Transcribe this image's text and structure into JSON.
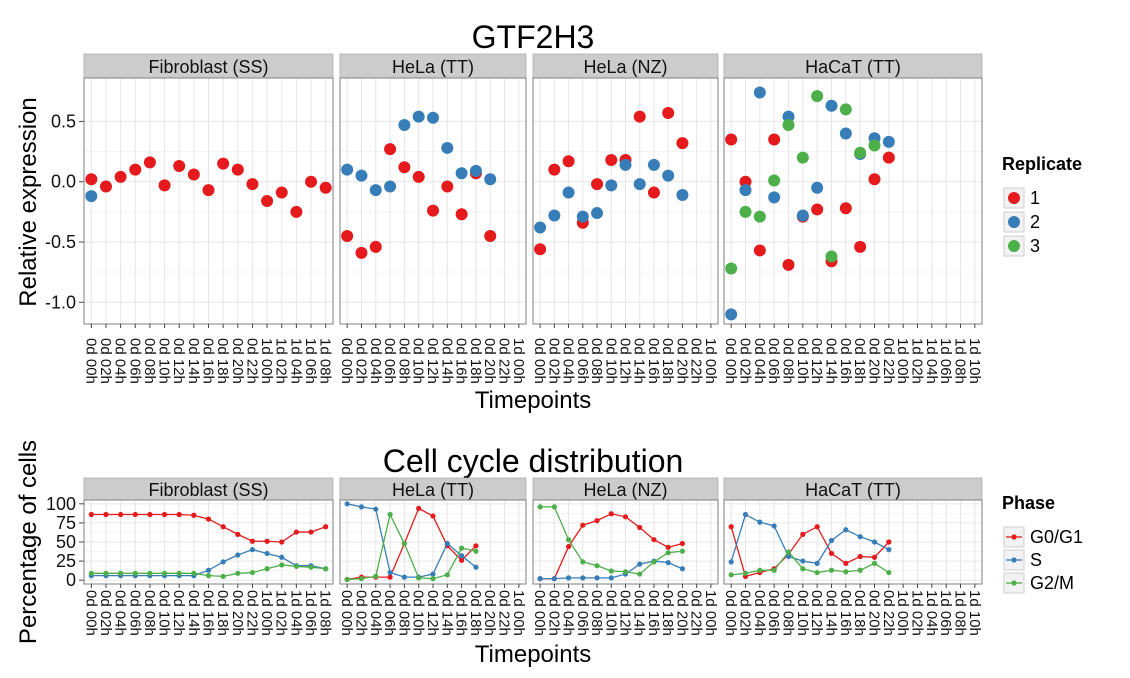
{
  "chart_data": [
    {
      "type": "scatter",
      "title": "GTF2H3",
      "xlabel": "Timepoints",
      "ylabel": "Relative expression",
      "ylim": [
        -1.18,
        0.86
      ],
      "yticks": [
        0.5,
        0.0,
        -0.5,
        -1.0
      ],
      "ytick_labels": [
        "0.5",
        "0.0",
        "-0.5",
        "-1.0"
      ],
      "grid": true,
      "legend": {
        "title": "Replicate",
        "position": "right"
      },
      "series_colors": {
        "1": "#e41a1c",
        "2": "#377eb8",
        "3": "#4daf4a"
      },
      "legend_entries": [
        {
          "key": "1",
          "label": "1"
        },
        {
          "key": "2",
          "label": "2"
        },
        {
          "key": "3",
          "label": "3"
        }
      ],
      "panels": [
        {
          "name": "Fibroblast (SS)",
          "categories": [
            "0d 00h",
            "0d 02h",
            "0d 04h",
            "0d 06h",
            "0d 08h",
            "0d 10h",
            "0d 12h",
            "0d 14h",
            "0d 16h",
            "0d 18h",
            "0d 20h",
            "0d 22h",
            "1d 00h",
            "1d 02h",
            "1d 04h",
            "1d 06h",
            "1d 08h"
          ],
          "series": [
            {
              "name": "1",
              "values": [
                0.02,
                -0.04,
                0.04,
                0.1,
                0.16,
                -0.03,
                0.13,
                0.06,
                -0.07,
                0.15,
                0.1,
                -0.02,
                -0.16,
                -0.09,
                -0.25,
                0.0,
                -0.05
              ]
            },
            {
              "name": "2",
              "values": [
                -0.12,
                null,
                null,
                null,
                null,
                null,
                null,
                null,
                null,
                null,
                null,
                null,
                null,
                null,
                null,
                null,
                null
              ]
            }
          ]
        },
        {
          "name": "HeLa (TT)",
          "categories": [
            "0d 00h",
            "0d 02h",
            "0d 04h",
            "0d 06h",
            "0d 08h",
            "0d 10h",
            "0d 12h",
            "0d 14h",
            "0d 16h",
            "0d 18h",
            "0d 20h",
            "0d 22h",
            "1d 00h"
          ],
          "series": [
            {
              "name": "1",
              "values": [
                -0.45,
                -0.59,
                -0.54,
                0.27,
                0.12,
                0.04,
                -0.24,
                -0.04,
                -0.27,
                0.07,
                -0.45,
                null,
                null
              ]
            },
            {
              "name": "2",
              "values": [
                0.1,
                0.05,
                -0.07,
                -0.04,
                0.47,
                0.54,
                0.53,
                0.28,
                0.07,
                0.09,
                0.02,
                null,
                null
              ]
            }
          ]
        },
        {
          "name": "HeLa (NZ)",
          "categories": [
            "0d 00h",
            "0d 02h",
            "0d 04h",
            "0d 06h",
            "0d 08h",
            "0d 10h",
            "0d 12h",
            "0d 14h",
            "0d 16h",
            "0d 18h",
            "0d 20h",
            "0d 22h",
            "1d 00h"
          ],
          "series": [
            {
              "name": "1",
              "values": [
                -0.56,
                0.1,
                0.17,
                -0.34,
                -0.02,
                0.18,
                0.18,
                0.54,
                -0.09,
                0.57,
                0.32,
                null,
                null
              ]
            },
            {
              "name": "2",
              "values": [
                -0.38,
                -0.28,
                -0.09,
                -0.29,
                -0.26,
                -0.03,
                0.14,
                -0.02,
                0.14,
                0.05,
                -0.11,
                null,
                null
              ]
            }
          ]
        },
        {
          "name": "HaCaT (TT)",
          "categories": [
            "0d 00h",
            "0d 02h",
            "0d 04h",
            "0d 06h",
            "0d 08h",
            "0d 10h",
            "0d 12h",
            "0d 14h",
            "0d 16h",
            "0d 18h",
            "0d 20h",
            "0d 22h",
            "1d 00h",
            "1d 02h",
            "1d 04h",
            "1d 06h",
            "1d 08h",
            "1d 10h"
          ],
          "series": [
            {
              "name": "1",
              "values": [
                0.35,
                0.0,
                -0.57,
                0.35,
                -0.69,
                -0.29,
                -0.23,
                -0.66,
                -0.22,
                -0.54,
                0.02,
                0.2,
                null,
                null,
                null,
                null,
                null,
                null
              ]
            },
            {
              "name": "2",
              "values": [
                -1.1,
                -0.07,
                0.74,
                -0.13,
                0.54,
                -0.28,
                -0.05,
                0.63,
                0.4,
                0.23,
                0.36,
                0.33,
                null,
                null,
                null,
                null,
                null,
                null
              ]
            },
            {
              "name": "3",
              "values": [
                -0.72,
                -0.25,
                -0.29,
                0.01,
                0.47,
                0.2,
                0.71,
                -0.62,
                0.6,
                0.24,
                0.3,
                null,
                null,
                null,
                null,
                null,
                null,
                null
              ]
            }
          ]
        }
      ]
    },
    {
      "type": "line",
      "title": "Cell cycle distribution",
      "xlabel": "Timepoints",
      "ylabel": "Percentage of cells",
      "ylim": [
        -5,
        105
      ],
      "yticks": [
        100,
        75,
        50,
        25,
        0
      ],
      "ytick_labels": [
        "100",
        "75",
        "50",
        "25",
        "0"
      ],
      "grid": true,
      "legend": {
        "title": "Phase",
        "position": "right"
      },
      "series_colors": {
        "G0/G1": "#e41a1c",
        "S": "#377eb8",
        "G2/M": "#4daf4a"
      },
      "legend_entries": [
        {
          "key": "G0/G1",
          "label": "G0/G1"
        },
        {
          "key": "S",
          "label": "S"
        },
        {
          "key": "G2/M",
          "label": "G2/M"
        }
      ],
      "panels": [
        {
          "name": "Fibroblast (SS)",
          "categories": [
            "0d 00h",
            "0d 02h",
            "0d 04h",
            "0d 06h",
            "0d 08h",
            "0d 10h",
            "0d 12h",
            "0d 14h",
            "0d 16h",
            "0d 18h",
            "0d 20h",
            "0d 22h",
            "1d 00h",
            "1d 02h",
            "1d 04h",
            "1d 06h",
            "1d 08h"
          ],
          "series": [
            {
              "name": "G0/G1",
              "values": [
                86,
                86,
                86,
                86,
                86,
                86,
                86,
                85,
                80,
                70,
                60,
                51,
                51,
                50,
                63,
                63,
                70
              ]
            },
            {
              "name": "S",
              "values": [
                6,
                6,
                6,
                6,
                6,
                6,
                6,
                6,
                13,
                24,
                33,
                40,
                35,
                30,
                19,
                19,
                15
              ]
            },
            {
              "name": "G2/M",
              "values": [
                9,
                9,
                9,
                9,
                9,
                9,
                9,
                9,
                6,
                5,
                9,
                10,
                15,
                20,
                18,
                17,
                15
              ]
            }
          ]
        },
        {
          "name": "HeLa (TT)",
          "categories": [
            "0d 00h",
            "0d 02h",
            "0d 04h",
            "0d 06h",
            "0d 08h",
            "0d 10h",
            "0d 12h",
            "0d 14h",
            "0d 16h",
            "0d 18h",
            "0d 20h",
            "0d 22h",
            "1d 00h"
          ],
          "series": [
            {
              "name": "G0/G1",
              "values": [
                1,
                4,
                4,
                4,
                48,
                94,
                84,
                45,
                26,
                45,
                null,
                null,
                null
              ]
            },
            {
              "name": "S",
              "values": [
                100,
                96,
                93,
                10,
                4,
                4,
                8,
                48,
                32,
                17,
                null,
                null,
                null
              ]
            },
            {
              "name": "G2/M",
              "values": [
                1,
                2,
                5,
                86,
                48,
                3,
                2,
                7,
                42,
                38,
                null,
                null,
                null
              ]
            }
          ]
        },
        {
          "name": "HeLa (NZ)",
          "categories": [
            "0d 00h",
            "0d 02h",
            "0d 04h",
            "0d 06h",
            "0d 08h",
            "0d 10h",
            "0d 12h",
            "0d 14h",
            "0d 16h",
            "0d 18h",
            "0d 20h",
            "0d 22h",
            "1d 00h"
          ],
          "series": [
            {
              "name": "G0/G1",
              "values": [
                2,
                2,
                44,
                72,
                78,
                87,
                83,
                69,
                53,
                43,
                48,
                null,
                null
              ]
            },
            {
              "name": "S",
              "values": [
                2,
                2,
                3,
                3,
                3,
                3,
                8,
                21,
                25,
                23,
                15,
                null,
                null
              ]
            },
            {
              "name": "G2/M",
              "values": [
                96,
                96,
                53,
                24,
                19,
                12,
                11,
                8,
                24,
                36,
                38,
                null,
                null
              ]
            }
          ]
        },
        {
          "name": "HaCaT (TT)",
          "categories": [
            "0d 00h",
            "0d 02h",
            "0d 04h",
            "0d 06h",
            "0d 08h",
            "0d 10h",
            "0d 12h",
            "0d 14h",
            "0d 16h",
            "0d 18h",
            "0d 20h",
            "0d 22h",
            "1d 00h",
            "1d 02h",
            "1d 04h",
            "1d 06h",
            "1d 08h",
            "1d 10h"
          ],
          "series": [
            {
              "name": "G0/G1",
              "values": [
                70,
                5,
                10,
                15,
                34,
                60,
                70,
                35,
                22,
                31,
                30,
                50,
                null,
                null,
                null,
                null,
                null,
                null
              ]
            },
            {
              "name": "S",
              "values": [
                24,
                86,
                76,
                71,
                31,
                25,
                22,
                52,
                66,
                57,
                50,
                40,
                null,
                null,
                null,
                null,
                null,
                null
              ]
            },
            {
              "name": "G2/M",
              "values": [
                7,
                9,
                13,
                13,
                37,
                15,
                10,
                13,
                11,
                13,
                22,
                10,
                null,
                null,
                null,
                null,
                null,
                null
              ]
            }
          ]
        }
      ]
    }
  ]
}
